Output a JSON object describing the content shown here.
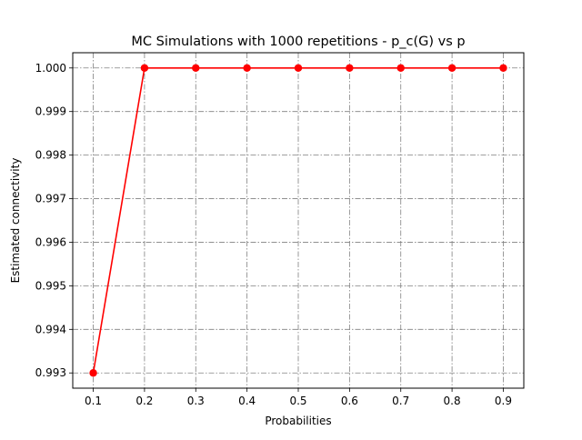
{
  "chart_data": {
    "type": "line",
    "title": "MC Simulations with 1000 repetitions - p_c(G) vs p",
    "xlabel": "Probabilities",
    "ylabel": "Estimated connectivity",
    "x": [
      0.1,
      0.2,
      0.3,
      0.4,
      0.5,
      0.6,
      0.7,
      0.8,
      0.9
    ],
    "series": [
      {
        "values": [
          0.993,
          1.0,
          1.0,
          1.0,
          1.0,
          1.0,
          1.0,
          1.0,
          1.0
        ],
        "color": "#ff0000",
        "marker": "circle",
        "line_style": "solid"
      }
    ],
    "xlim": [
      0.06,
      0.94
    ],
    "ylim": [
      0.99265,
      1.00035
    ],
    "xticks": [
      0.1,
      0.2,
      0.3,
      0.4,
      0.5,
      0.6,
      0.7,
      0.8,
      0.9
    ],
    "xtick_labels": [
      "0.1",
      "0.2",
      "0.3",
      "0.4",
      "0.5",
      "0.6",
      "0.7",
      "0.8",
      "0.9"
    ],
    "yticks": [
      0.993,
      0.994,
      0.995,
      0.996,
      0.997,
      0.998,
      0.999,
      1.0
    ],
    "ytick_labels": [
      "0.993",
      "0.994",
      "0.995",
      "0.996",
      "0.997",
      "0.998",
      "0.999",
      "1.000"
    ],
    "grid": true,
    "grid_style": "dash-dot",
    "grid_color": "#808080",
    "legend": false
  }
}
